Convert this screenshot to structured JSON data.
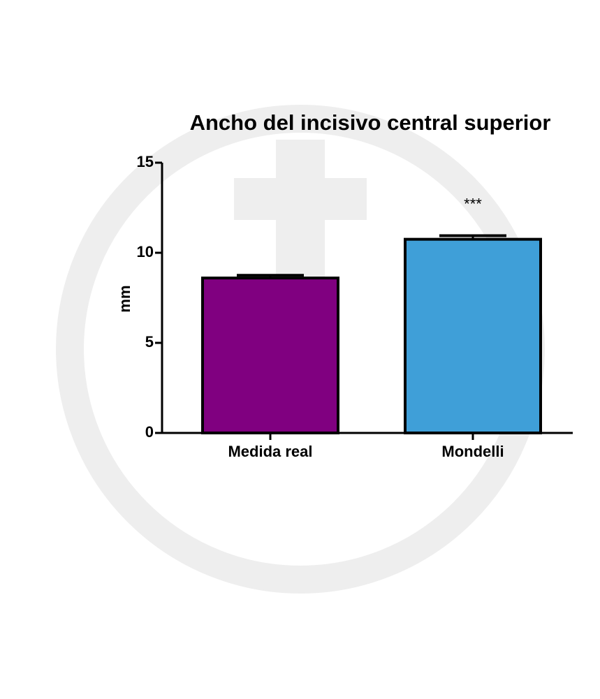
{
  "chart_data": {
    "type": "bar",
    "title": "Ancho del incisivo central superior",
    "y_label": "mm",
    "categories": [
      "Medida real",
      "Mondelli"
    ],
    "values": [
      8.6,
      10.75
    ],
    "errors": [
      0.15,
      0.2
    ],
    "colors": [
      "#800080",
      "#3f9fd8"
    ],
    "annotations": [
      null,
      "***"
    ],
    "ylim": [
      0,
      15
    ],
    "yticks": [
      0,
      5,
      10,
      15
    ],
    "grid": false
  }
}
